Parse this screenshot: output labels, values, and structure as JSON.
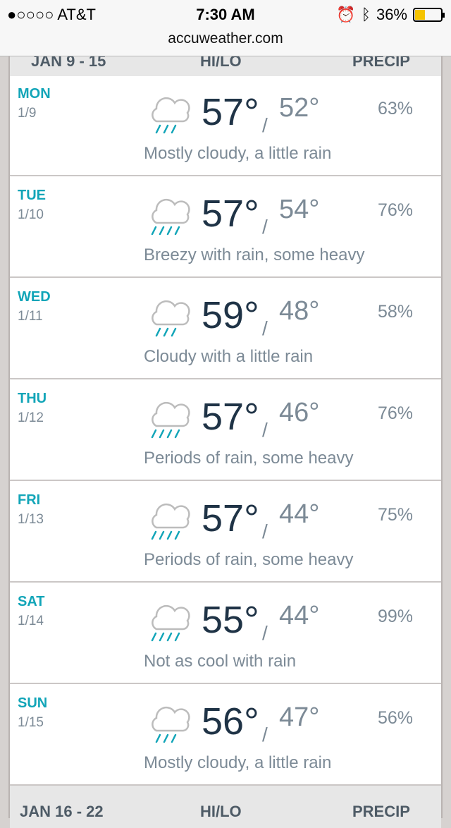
{
  "status_bar": {
    "carrier": "●○○○○ AT&T",
    "time": "7:30 AM",
    "battery": "36%",
    "battery_level": 0.36
  },
  "url": "accuweather.com",
  "header_top": {
    "range": "JAN 9 - 15",
    "hilo": "HI/LO",
    "precip": "PRECIP"
  },
  "header_bottom": {
    "range": "JAN 16 - 22",
    "hilo": "HI/LO",
    "precip": "PRECIP"
  },
  "colors": {
    "accent": "#12a5b8",
    "hi": "#1f3346",
    "muted": "#7c8a96"
  },
  "days": [
    {
      "day": "MON",
      "date": "1/9",
      "hi": "57°",
      "lo": "52°",
      "precip": "63%",
      "desc": "Mostly cloudy, a little rain",
      "icon": "cloud-light-rain-icon",
      "drops": 3
    },
    {
      "day": "TUE",
      "date": "1/10",
      "hi": "57°",
      "lo": "54°",
      "precip": "76%",
      "desc": "Breezy with rain, some heavy",
      "icon": "cloud-heavy-rain-icon",
      "drops": 4
    },
    {
      "day": "WED",
      "date": "1/11",
      "hi": "59°",
      "lo": "48°",
      "precip": "58%",
      "desc": "Cloudy with a little rain",
      "icon": "cloud-light-rain-icon",
      "drops": 3
    },
    {
      "day": "THU",
      "date": "1/12",
      "hi": "57°",
      "lo": "46°",
      "precip": "76%",
      "desc": "Periods of rain, some heavy",
      "icon": "cloud-heavy-rain-icon",
      "drops": 4
    },
    {
      "day": "FRI",
      "date": "1/13",
      "hi": "57°",
      "lo": "44°",
      "precip": "75%",
      "desc": "Periods of rain, some heavy",
      "icon": "cloud-heavy-rain-icon",
      "drops": 4
    },
    {
      "day": "SAT",
      "date": "1/14",
      "hi": "55°",
      "lo": "44°",
      "precip": "99%",
      "desc": "Not as cool with rain",
      "icon": "cloud-heavy-rain-icon",
      "drops": 4
    },
    {
      "day": "SUN",
      "date": "1/15",
      "hi": "56°",
      "lo": "47°",
      "precip": "56%",
      "desc": "Mostly cloudy, a little rain",
      "icon": "cloud-light-rain-icon",
      "drops": 3
    }
  ]
}
